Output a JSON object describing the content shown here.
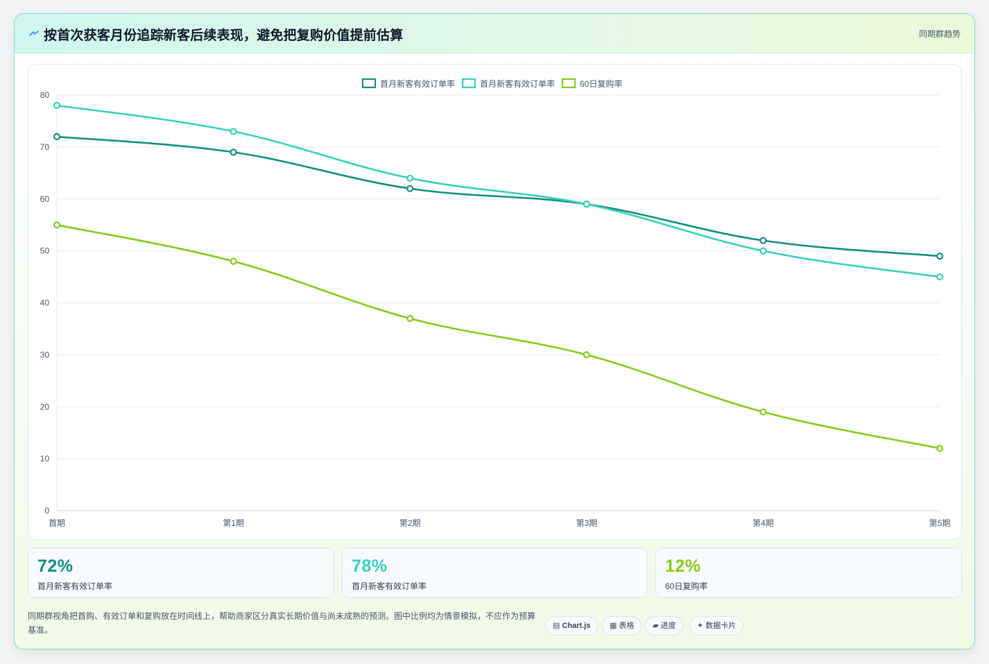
{
  "header": {
    "title": "按首次获客月份追踪新客后续表现，避免把复购价值提前估算",
    "tag": "同期群趋势",
    "icon": "bolt-icon"
  },
  "chart_data": {
    "type": "line",
    "categories": [
      "首期",
      "第1期",
      "第2期",
      "第3期",
      "第4期",
      "第5期"
    ],
    "series": [
      {
        "name": "首月新客有效订单率",
        "color": "#12907f",
        "values": [
          72,
          69,
          62,
          59,
          52,
          49
        ]
      },
      {
        "name": "首月新客有效订单率",
        "color": "#35d0bd",
        "values": [
          78,
          73,
          64,
          59,
          50,
          45
        ]
      },
      {
        "name": "60日复购率",
        "color": "#84cc16",
        "values": [
          55,
          48,
          37,
          30,
          19,
          12
        ]
      }
    ],
    "ylim": [
      0,
      80
    ],
    "yticks": [
      0,
      10,
      20,
      30,
      40,
      50,
      60,
      70,
      80
    ],
    "grid": true,
    "legend": "top-center"
  },
  "stats": [
    {
      "value": "72%",
      "label": "首月新客有效订单率",
      "color": "#12907f"
    },
    {
      "value": "78%",
      "label": "首月新客有效订单率",
      "color": "#35d0bd"
    },
    {
      "value": "12%",
      "label": "60日复购率",
      "color": "#84cc16"
    }
  ],
  "note": "同期群视角把首购、有效订单和复购放在时间线上，帮助商家区分真实长期价值与尚未成熟的预测。图中比例均为情景模拟，不应作为预算基准。",
  "chips": [
    {
      "icon": "chart-icon",
      "glyph": "▤",
      "label": "Chart.js"
    },
    {
      "icon": "table-icon",
      "glyph": "▦",
      "label": "表格"
    },
    {
      "icon": "progress-icon",
      "glyph": "▰",
      "label": "进度"
    },
    {
      "icon": "sparkle-icon",
      "glyph": "✦",
      "label": "数据卡片"
    }
  ]
}
